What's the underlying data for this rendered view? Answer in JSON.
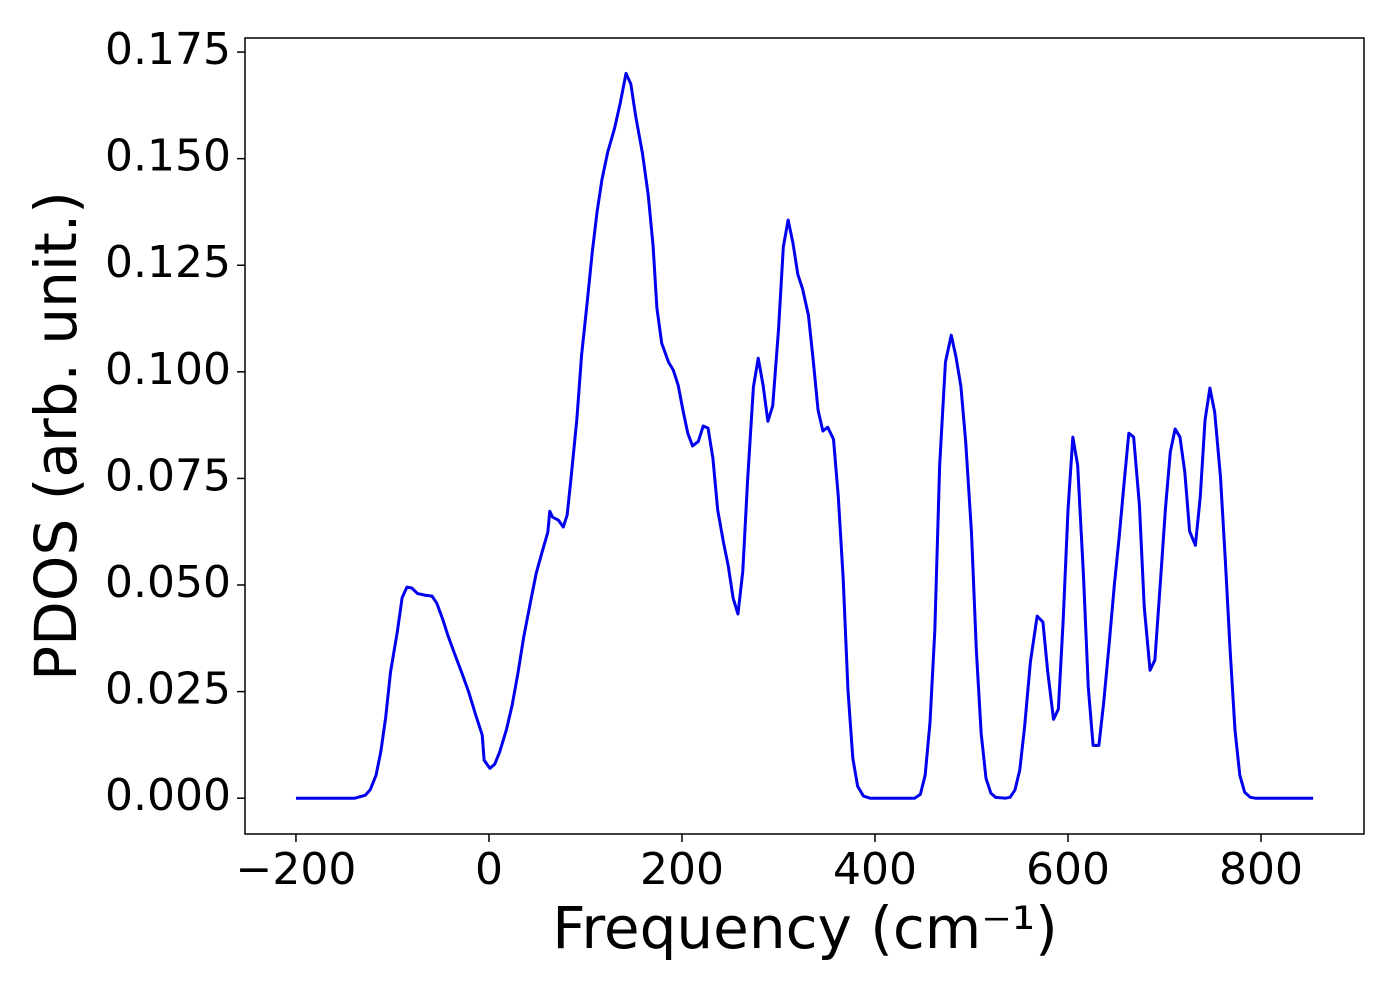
{
  "chart_data": {
    "type": "line",
    "x_label": "Frequency (cm⁻¹)",
    "y_label": "PDOS (arb. unit.)",
    "xlim": [
      -252.8,
      906.7
    ],
    "ylim": [
      -0.0084,
      0.1783
    ],
    "xticks": [
      {
        "value": -200,
        "label": "−200"
      },
      0,
      200,
      400,
      600,
      800
    ],
    "yticks": [
      {
        "value": 0,
        "label": "0.000"
      },
      {
        "value": 0.025,
        "label": "0.025"
      },
      {
        "value": 0.05,
        "label": "0.050"
      },
      {
        "value": 0.075,
        "label": "0.075"
      },
      {
        "value": 0.1,
        "label": "0.100"
      },
      {
        "value": 0.125,
        "label": "0.125"
      },
      {
        "value": 0.15,
        "label": "0.150"
      },
      {
        "value": 0.175,
        "label": "0.175"
      }
    ],
    "grid": false,
    "x": [
      -200,
      -150,
      -139,
      -128,
      -123,
      -117,
      -112,
      -107,
      -102,
      -95,
      -90,
      -85,
      -80,
      -74,
      -66,
      -59,
      -54,
      -48,
      -42,
      -35,
      -28,
      -21,
      -14,
      -7,
      -5,
      1,
      6,
      11,
      18,
      24,
      30,
      36,
      43,
      49,
      55,
      61,
      63,
      66,
      72,
      77,
      81,
      85,
      91,
      96,
      102,
      107,
      112,
      117,
      123,
      130,
      136,
      142,
      147,
      152,
      159,
      165,
      170,
      174,
      179,
      186,
      191,
      196,
      201,
      206,
      211,
      217,
      222,
      227,
      232,
      237,
      243,
      248,
      253,
      258,
      263,
      268,
      274,
      279,
      284,
      289,
      294,
      300,
      305,
      310,
      315,
      320,
      325,
      331,
      336,
      341,
      346,
      351,
      357,
      362,
      367,
      372,
      377,
      382,
      388,
      395,
      441,
      447,
      452,
      457,
      462,
      467,
      473,
      479,
      484,
      489,
      494,
      500,
      505,
      510,
      515,
      520,
      525,
      535,
      540,
      545,
      550,
      555,
      561,
      568,
      574,
      579,
      585,
      590,
      595,
      600,
      605,
      610,
      616,
      621,
      626,
      632,
      637,
      643,
      648,
      653,
      658,
      663,
      668,
      674,
      679,
      685,
      690,
      695,
      701,
      706,
      711,
      716,
      721,
      726,
      732,
      737,
      742,
      747,
      752,
      758,
      763,
      768,
      773,
      778,
      783,
      789,
      794,
      854
    ],
    "series": [
      {
        "name": "PDOS",
        "color": "#0000ee",
        "values": [
          0,
          0,
          0,
          0.0007,
          0.002,
          0.0054,
          0.011,
          0.019,
          0.0296,
          0.039,
          0.047,
          0.0495,
          0.0493,
          0.048,
          0.0476,
          0.0474,
          0.0457,
          0.042,
          0.0378,
          0.0335,
          0.0293,
          0.0249,
          0.0197,
          0.0148,
          0.0089,
          0.007,
          0.008,
          0.0108,
          0.016,
          0.0218,
          0.0293,
          0.0378,
          0.046,
          0.0528,
          0.0577,
          0.0624,
          0.0673,
          0.0659,
          0.0652,
          0.0636,
          0.0664,
          0.075,
          0.0887,
          0.104,
          0.1168,
          0.128,
          0.1375,
          0.145,
          0.1515,
          0.157,
          0.163,
          0.17,
          0.1675,
          0.16,
          0.1513,
          0.1415,
          0.1297,
          0.115,
          0.1067,
          0.1023,
          0.1004,
          0.0969,
          0.091,
          0.0856,
          0.0826,
          0.0837,
          0.0873,
          0.0868,
          0.0798,
          0.0676,
          0.06,
          0.0544,
          0.0469,
          0.0432,
          0.0532,
          0.0746,
          0.0964,
          0.1032,
          0.0969,
          0.0884,
          0.092,
          0.1098,
          0.1293,
          0.1356,
          0.1302,
          0.1229,
          0.1194,
          0.1133,
          0.1027,
          0.091,
          0.0861,
          0.087,
          0.0842,
          0.0706,
          0.0516,
          0.0253,
          0.0094,
          0.0028,
          0.0005,
          0,
          0,
          0.0009,
          0.0054,
          0.0178,
          0.0394,
          0.0781,
          0.1023,
          0.1086,
          0.1034,
          0.0966,
          0.0835,
          0.0622,
          0.0347,
          0.0152,
          0.0047,
          0.0012,
          0.0002,
          0,
          0.0002,
          0.0019,
          0.0066,
          0.0167,
          0.0319,
          0.0427,
          0.0413,
          0.0296,
          0.0185,
          0.0209,
          0.0418,
          0.0676,
          0.0847,
          0.0781,
          0.0523,
          0.026,
          0.0124,
          0.0124,
          0.0225,
          0.0371,
          0.05,
          0.0612,
          0.0737,
          0.0856,
          0.0847,
          0.0687,
          0.0448,
          0.03,
          0.0324,
          0.0483,
          0.068,
          0.0812,
          0.0866,
          0.0847,
          0.0765,
          0.0626,
          0.0593,
          0.0706,
          0.0887,
          0.0962,
          0.0905,
          0.0753,
          0.0558,
          0.0347,
          0.016,
          0.0054,
          0.0014,
          0.0002,
          0,
          0
        ]
      }
    ]
  }
}
